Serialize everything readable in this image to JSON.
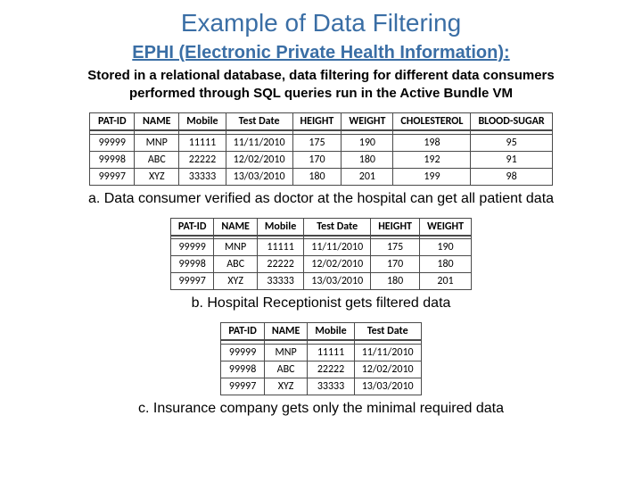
{
  "title": "Example of Data Filtering",
  "subtitle": "EPHI (Electronic Private Health Information):",
  "description_line1": "Stored in a relational database, data filtering for different data consumers",
  "description_line2": "performed through SQL queries run in the Active Bundle VM",
  "tables": {
    "a": {
      "columns": [
        "PAT-ID",
        "NAME",
        "Mobile",
        "Test Date",
        "HEIGHT",
        "WEIGHT",
        "CHOLESTEROL",
        "BLOOD-SUGAR"
      ],
      "rows": [
        [
          "99999",
          "MNP",
          "11111",
          "11/11/2010",
          "175",
          "190",
          "198",
          "95"
        ],
        [
          "99998",
          "ABC",
          "22222",
          "12/02/2010",
          "170",
          "180",
          "192",
          "91"
        ],
        [
          "99997",
          "XYZ",
          "33333",
          "13/03/2010",
          "180",
          "201",
          "199",
          "98"
        ]
      ],
      "caption": "a. Data consumer  verified as doctor at the hospital can get all patient data"
    },
    "b": {
      "columns": [
        "PAT-ID",
        "NAME",
        "Mobile",
        "Test Date",
        "HEIGHT",
        "WEIGHT"
      ],
      "rows": [
        [
          "99999",
          "MNP",
          "11111",
          "11/11/2010",
          "175",
          "190"
        ],
        [
          "99998",
          "ABC",
          "22222",
          "12/02/2010",
          "170",
          "180"
        ],
        [
          "99997",
          "XYZ",
          "33333",
          "13/03/2010",
          "180",
          "201"
        ]
      ],
      "caption": "b. Hospital Receptionist gets filtered data"
    },
    "c": {
      "columns": [
        "PAT-ID",
        "NAME",
        "Mobile",
        "Test Date"
      ],
      "rows": [
        [
          "99999",
          "MNP",
          "11111",
          "11/11/2010"
        ],
        [
          "99998",
          "ABC",
          "22222",
          "12/02/2010"
        ],
        [
          "99997",
          "XYZ",
          "33333",
          "13/03/2010"
        ]
      ],
      "caption": "c. Insurance company gets only the minimal required data"
    }
  },
  "colors": {
    "title_color": "#3a6ea5",
    "text_color": "#000000",
    "border_color": "#4a4a4a",
    "background": "#ffffff"
  }
}
